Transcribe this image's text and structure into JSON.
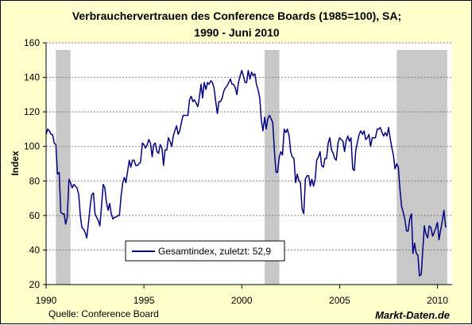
{
  "chart_data": {
    "type": "line",
    "title_line1": "Verbrauchervertrauen des Conference Boards (1985=100), SA;",
    "title_line2": "1990 -  Juni 2010",
    "ylabel": "Index",
    "xlabel": "",
    "ylim": [
      20,
      160
    ],
    "y_ticks": [
      "20",
      "40",
      "60",
      "80",
      "100",
      "120",
      "140",
      "160"
    ],
    "x_range": [
      1990.0,
      2010.75
    ],
    "x_ticks": [
      "1990",
      "1995",
      "2000",
      "2005",
      "2010"
    ],
    "grid": "horizontal dashed",
    "legend_position": "bottom-center",
    "recessions": [
      [
        1990.5,
        1991.25
      ],
      [
        2001.17,
        2001.92
      ],
      [
        2007.92,
        2010.5
      ]
    ],
    "series": [
      {
        "name": "Gesamtindex, zuletzt: 52,9",
        "color": "#000080",
        "points": [
          [
            1990.0,
            107
          ],
          [
            1990.08,
            110
          ],
          [
            1990.17,
            109
          ],
          [
            1990.25,
            107
          ],
          [
            1990.33,
            107
          ],
          [
            1990.42,
            102
          ],
          [
            1990.5,
            101
          ],
          [
            1990.58,
            84
          ],
          [
            1990.67,
            85
          ],
          [
            1990.75,
            62
          ],
          [
            1990.83,
            61
          ],
          [
            1990.92,
            61
          ],
          [
            1991.0,
            55
          ],
          [
            1991.08,
            59
          ],
          [
            1991.17,
            81
          ],
          [
            1991.25,
            79
          ],
          [
            1991.33,
            76
          ],
          [
            1991.42,
            78
          ],
          [
            1991.5,
            77
          ],
          [
            1991.58,
            76
          ],
          [
            1991.67,
            72
          ],
          [
            1991.75,
            60
          ],
          [
            1991.83,
            53
          ],
          [
            1991.92,
            52
          ],
          [
            1992.0,
            50
          ],
          [
            1992.08,
            47
          ],
          [
            1992.17,
            56
          ],
          [
            1992.25,
            65
          ],
          [
            1992.33,
            72
          ],
          [
            1992.42,
            73
          ],
          [
            1992.5,
            61
          ],
          [
            1992.58,
            59
          ],
          [
            1992.67,
            57
          ],
          [
            1992.75,
            54
          ],
          [
            1992.83,
            65
          ],
          [
            1992.92,
            78
          ],
          [
            1993.0,
            76
          ],
          [
            1993.08,
            68
          ],
          [
            1993.17,
            63
          ],
          [
            1993.25,
            67
          ],
          [
            1993.33,
            61
          ],
          [
            1993.42,
            58
          ],
          [
            1993.5,
            59
          ],
          [
            1993.58,
            59
          ],
          [
            1993.67,
            60
          ],
          [
            1993.75,
            60
          ],
          [
            1993.83,
            71
          ],
          [
            1993.92,
            79
          ],
          [
            1994.0,
            82
          ],
          [
            1994.08,
            79
          ],
          [
            1994.17,
            86
          ],
          [
            1994.25,
            92
          ],
          [
            1994.33,
            88
          ],
          [
            1994.42,
            92
          ],
          [
            1994.5,
            92
          ],
          [
            1994.58,
            89
          ],
          [
            1994.67,
            89
          ],
          [
            1994.75,
            90
          ],
          [
            1994.83,
            91
          ],
          [
            1994.92,
            102
          ],
          [
            1995.0,
            101
          ],
          [
            1995.08,
            99
          ],
          [
            1995.17,
            101
          ],
          [
            1995.25,
            104
          ],
          [
            1995.33,
            102
          ],
          [
            1995.42,
            94
          ],
          [
            1995.5,
            101
          ],
          [
            1995.58,
            102
          ],
          [
            1995.67,
            97
          ],
          [
            1995.75,
            96
          ],
          [
            1995.83,
            101
          ],
          [
            1995.92,
            99
          ],
          [
            1996.0,
            89
          ],
          [
            1996.08,
            98
          ],
          [
            1996.17,
            98
          ],
          [
            1996.25,
            105
          ],
          [
            1996.33,
            103
          ],
          [
            1996.42,
            100
          ],
          [
            1996.5,
            106
          ],
          [
            1996.58,
            109
          ],
          [
            1996.67,
            112
          ],
          [
            1996.75,
            107
          ],
          [
            1996.83,
            109
          ],
          [
            1996.92,
            114
          ],
          [
            1997.0,
            118
          ],
          [
            1997.08,
            118
          ],
          [
            1997.17,
            118
          ],
          [
            1997.25,
            118
          ],
          [
            1997.33,
            127
          ],
          [
            1997.42,
            129
          ],
          [
            1997.5,
            126
          ],
          [
            1997.58,
            127
          ],
          [
            1997.67,
            125
          ],
          [
            1997.75,
            123
          ],
          [
            1997.83,
            128
          ],
          [
            1997.92,
            136
          ],
          [
            1998.0,
            128
          ],
          [
            1998.08,
            137
          ],
          [
            1998.17,
            133
          ],
          [
            1998.25,
            137
          ],
          [
            1998.33,
            136
          ],
          [
            1998.42,
            138
          ],
          [
            1998.5,
            137
          ],
          [
            1998.58,
            134
          ],
          [
            1998.67,
            126
          ],
          [
            1998.75,
            119
          ],
          [
            1998.83,
            126
          ],
          [
            1998.92,
            126
          ],
          [
            1999.0,
            128
          ],
          [
            1999.08,
            132
          ],
          [
            1999.17,
            134
          ],
          [
            1999.25,
            135
          ],
          [
            1999.33,
            137
          ],
          [
            1999.42,
            139
          ],
          [
            1999.5,
            136
          ],
          [
            1999.58,
            136
          ],
          [
            1999.67,
            134
          ],
          [
            1999.75,
            130
          ],
          [
            1999.83,
            137
          ],
          [
            1999.92,
            141
          ],
          [
            2000.0,
            144
          ],
          [
            2000.08,
            141
          ],
          [
            2000.17,
            137
          ],
          [
            2000.25,
            137
          ],
          [
            2000.33,
            144
          ],
          [
            2000.42,
            139
          ],
          [
            2000.5,
            143
          ],
          [
            2000.58,
            141
          ],
          [
            2000.67,
            142
          ],
          [
            2000.75,
            136
          ],
          [
            2000.83,
            133
          ],
          [
            2000.92,
            128
          ],
          [
            2001.0,
            115
          ],
          [
            2001.08,
            109
          ],
          [
            2001.17,
            117
          ],
          [
            2001.25,
            110
          ],
          [
            2001.33,
            116
          ],
          [
            2001.42,
            118
          ],
          [
            2001.5,
            116
          ],
          [
            2001.58,
            114
          ],
          [
            2001.67,
            97
          ],
          [
            2001.75,
            85
          ],
          [
            2001.83,
            85
          ],
          [
            2001.92,
            94
          ],
          [
            2002.0,
            97
          ],
          [
            2002.08,
            95
          ],
          [
            2002.17,
            110
          ],
          [
            2002.25,
            108
          ],
          [
            2002.33,
            110
          ],
          [
            2002.42,
            106
          ],
          [
            2002.5,
            97
          ],
          [
            2002.58,
            94
          ],
          [
            2002.67,
            93
          ],
          [
            2002.75,
            79
          ],
          [
            2002.83,
            84
          ],
          [
            2002.92,
            80
          ],
          [
            2003.0,
            79
          ],
          [
            2003.08,
            64
          ],
          [
            2003.17,
            61
          ],
          [
            2003.25,
            81
          ],
          [
            2003.33,
            83
          ],
          [
            2003.42,
            83
          ],
          [
            2003.5,
            77
          ],
          [
            2003.58,
            81
          ],
          [
            2003.67,
            77
          ],
          [
            2003.75,
            81
          ],
          [
            2003.83,
            92
          ],
          [
            2003.92,
            94
          ],
          [
            2004.0,
            97
          ],
          [
            2004.08,
            89
          ],
          [
            2004.17,
            88
          ],
          [
            2004.25,
            93
          ],
          [
            2004.33,
            93
          ],
          [
            2004.42,
            102
          ],
          [
            2004.5,
            105
          ],
          [
            2004.58,
            98
          ],
          [
            2004.67,
            96
          ],
          [
            2004.75,
            93
          ],
          [
            2004.83,
            92
          ],
          [
            2004.92,
            102
          ],
          [
            2005.0,
            105
          ],
          [
            2005.08,
            104
          ],
          [
            2005.17,
            103
          ],
          [
            2005.25,
            97
          ],
          [
            2005.33,
            103
          ],
          [
            2005.42,
            106
          ],
          [
            2005.5,
            103
          ],
          [
            2005.58,
            105
          ],
          [
            2005.67,
            87
          ],
          [
            2005.75,
            86
          ],
          [
            2005.83,
            98
          ],
          [
            2005.92,
            103
          ],
          [
            2006.0,
            107
          ],
          [
            2006.08,
            109
          ],
          [
            2006.17,
            107
          ],
          [
            2006.25,
            109
          ],
          [
            2006.33,
            104
          ],
          [
            2006.42,
            105
          ],
          [
            2006.5,
            107
          ],
          [
            2006.58,
            100
          ],
          [
            2006.67,
            105
          ],
          [
            2006.75,
            105
          ],
          [
            2006.83,
            105
          ],
          [
            2006.92,
            110
          ],
          [
            2007.0,
            110
          ],
          [
            2007.08,
            111
          ],
          [
            2007.17,
            108
          ],
          [
            2007.25,
            106
          ],
          [
            2007.33,
            108
          ],
          [
            2007.42,
            106
          ],
          [
            2007.5,
            111
          ],
          [
            2007.58,
            105
          ],
          [
            2007.67,
            99
          ],
          [
            2007.75,
            95
          ],
          [
            2007.83,
            87
          ],
          [
            2007.92,
            90
          ],
          [
            2008.0,
            88
          ],
          [
            2008.08,
            76
          ],
          [
            2008.17,
            65
          ],
          [
            2008.25,
            62
          ],
          [
            2008.33,
            58
          ],
          [
            2008.42,
            51
          ],
          [
            2008.5,
            51
          ],
          [
            2008.58,
            58
          ],
          [
            2008.67,
            61
          ],
          [
            2008.75,
            38
          ],
          [
            2008.83,
            44
          ],
          [
            2008.92,
            38
          ],
          [
            2009.0,
            37
          ],
          [
            2009.08,
            25
          ],
          [
            2009.17,
            26
          ],
          [
            2009.25,
            40
          ],
          [
            2009.33,
            54
          ],
          [
            2009.42,
            49
          ],
          [
            2009.5,
            47
          ],
          [
            2009.58,
            54
          ],
          [
            2009.67,
            53
          ],
          [
            2009.75,
            48
          ],
          [
            2009.83,
            50
          ],
          [
            2009.92,
            53
          ],
          [
            2010.0,
            56
          ],
          [
            2010.08,
            46
          ],
          [
            2010.17,
            52
          ],
          [
            2010.25,
            57
          ],
          [
            2010.33,
            63
          ],
          [
            2010.42,
            53
          ]
        ]
      }
    ]
  },
  "footer": {
    "source": "Quelle: Conference Board",
    "brand": "Markt-Daten.de"
  },
  "colors": {
    "background": "#ffffcc",
    "plot_area": "#ffffff",
    "recession_band": "#c8c8c8",
    "grid": "#7f7f7f",
    "series": "#000080"
  }
}
